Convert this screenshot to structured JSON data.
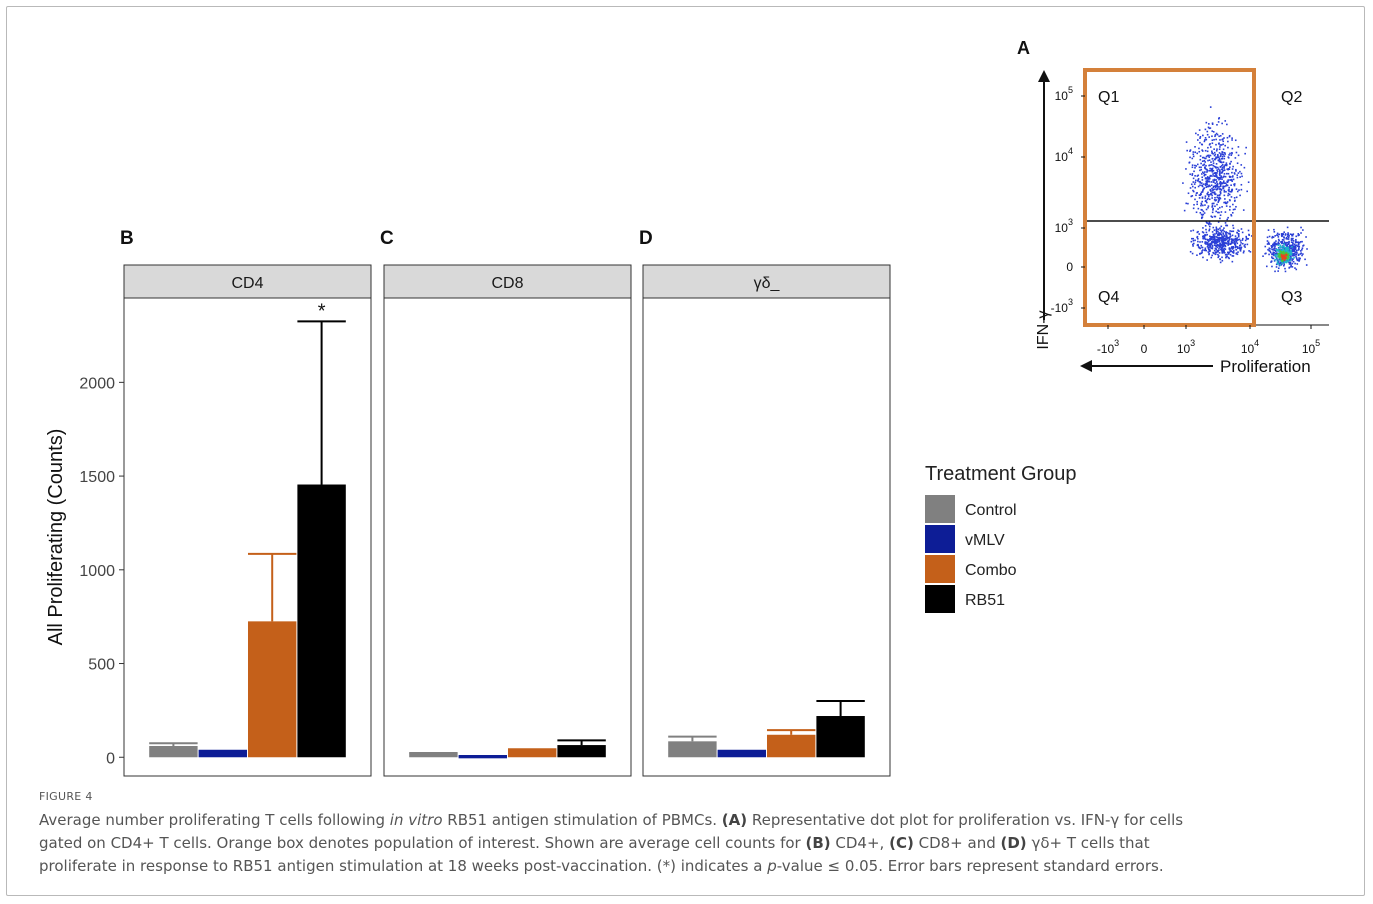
{
  "chart_data": {
    "type": "bar",
    "panels": [
      {
        "panel_letter": "B",
        "strip": "CD4",
        "values": [
          60,
          40,
          725,
          1455
        ],
        "errors": [
          15,
          0,
          360,
          870
        ],
        "annotation": "*"
      },
      {
        "panel_letter": "C",
        "strip": "CD8",
        "values": [
          20,
          5,
          40,
          65
        ],
        "errors": [
          3,
          2,
          3,
          25
        ],
        "annotation": ""
      },
      {
        "panel_letter": "D",
        "strip": "γδ_",
        "values": [
          85,
          40,
          120,
          220
        ],
        "errors": [
          25,
          0,
          25,
          80
        ],
        "annotation": ""
      }
    ],
    "categories": [
      "Control",
      "vMLV",
      "Combo",
      "RB51"
    ],
    "colors": [
      "#808080",
      "#0d1d96",
      "#c4601a",
      "#000000"
    ],
    "ylabel": "All Proliferating (Counts)",
    "yticks": [
      0,
      500,
      1000,
      1500,
      2000
    ],
    "ylim": [
      -100,
      2450
    ],
    "legend": {
      "title": "Treatment Group",
      "placement": "right"
    },
    "grid": false
  },
  "flow_plot": {
    "panel_letter": "A",
    "y_axis_label": "IFN-γ",
    "x_axis_label": "Proliferation",
    "y_ticks": [
      {
        "base": "10",
        "exp": "5"
      },
      {
        "base": "10",
        "exp": "4"
      },
      {
        "base": "10",
        "exp": "3"
      },
      {
        "base": "0",
        "exp": ""
      },
      {
        "base": "-10",
        "exp": "3"
      }
    ],
    "x_ticks": [
      {
        "base": "-10",
        "exp": "3"
      },
      {
        "base": "0",
        "exp": ""
      },
      {
        "base": "10",
        "exp": "3"
      },
      {
        "base": "10",
        "exp": "4"
      },
      {
        "base": "10",
        "exp": "5"
      }
    ],
    "quadrants": [
      "Q1",
      "Q2",
      "Q3",
      "Q4"
    ],
    "gate_color": "#d4803a"
  },
  "caption": {
    "figure_label": "FIGURE 4",
    "l1a": "Average number proliferating T cells following ",
    "l1b": "in vitro",
    "l1c": " RB51 antigen stimulation of PBMCs. ",
    "l1d": "(A)",
    "l1e": " Representative dot plot for proliferation vs. IFN-γ for cells",
    "l2a": "gated on CD4+ T cells. Orange box denotes population of interest. Shown are average cell counts for ",
    "l2b": "(B)",
    "l2c": " CD4+, ",
    "l2d": "(C)",
    "l2e": " CD8+ and ",
    "l2f": "(D)",
    "l2g": " γδ+ T cells that",
    "l3a": "proliferate in response to RB51 antigen stimulation at 18 weeks post-vaccination. (*) indicates a ",
    "l3b": "p",
    "l3c": "-value ≤ 0.05. Error bars represent standard errors."
  }
}
